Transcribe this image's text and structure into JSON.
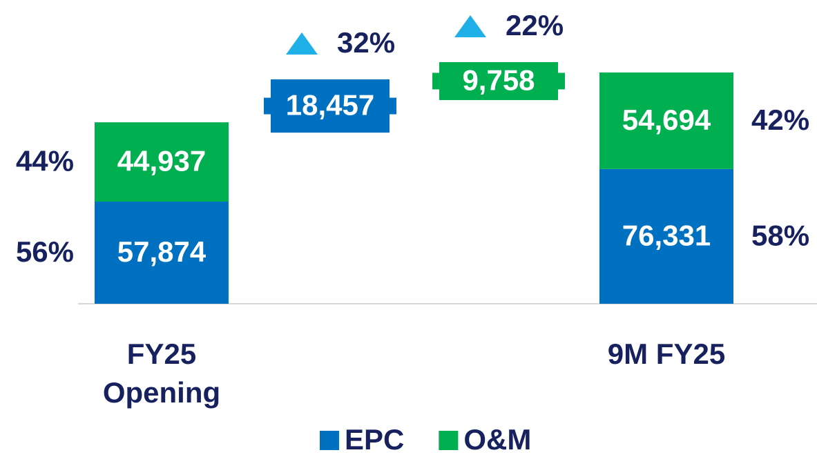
{
  "chart_data": {
    "type": "waterfall",
    "categories": [
      "FY25 Opening",
      null,
      null,
      "9M FY25"
    ],
    "kinds": [
      "total",
      "delta",
      "delta",
      "total"
    ],
    "series": [
      {
        "name": "EPC",
        "color": "#0070c0",
        "values": [
          57874,
          18457,
          null,
          76331
        ],
        "value_labels": [
          "57,874",
          "18,457",
          null,
          "76,331"
        ],
        "percent_labels": [
          "56%",
          "32%",
          null,
          "58%"
        ]
      },
      {
        "name": "O&M",
        "color": "#00b050",
        "values": [
          44937,
          null,
          9758,
          54694
        ],
        "value_labels": [
          "44,937",
          null,
          "9,758",
          "54,694"
        ],
        "percent_labels": [
          "44%",
          null,
          "22%",
          "42%"
        ]
      }
    ],
    "legend": "bottom"
  }
}
